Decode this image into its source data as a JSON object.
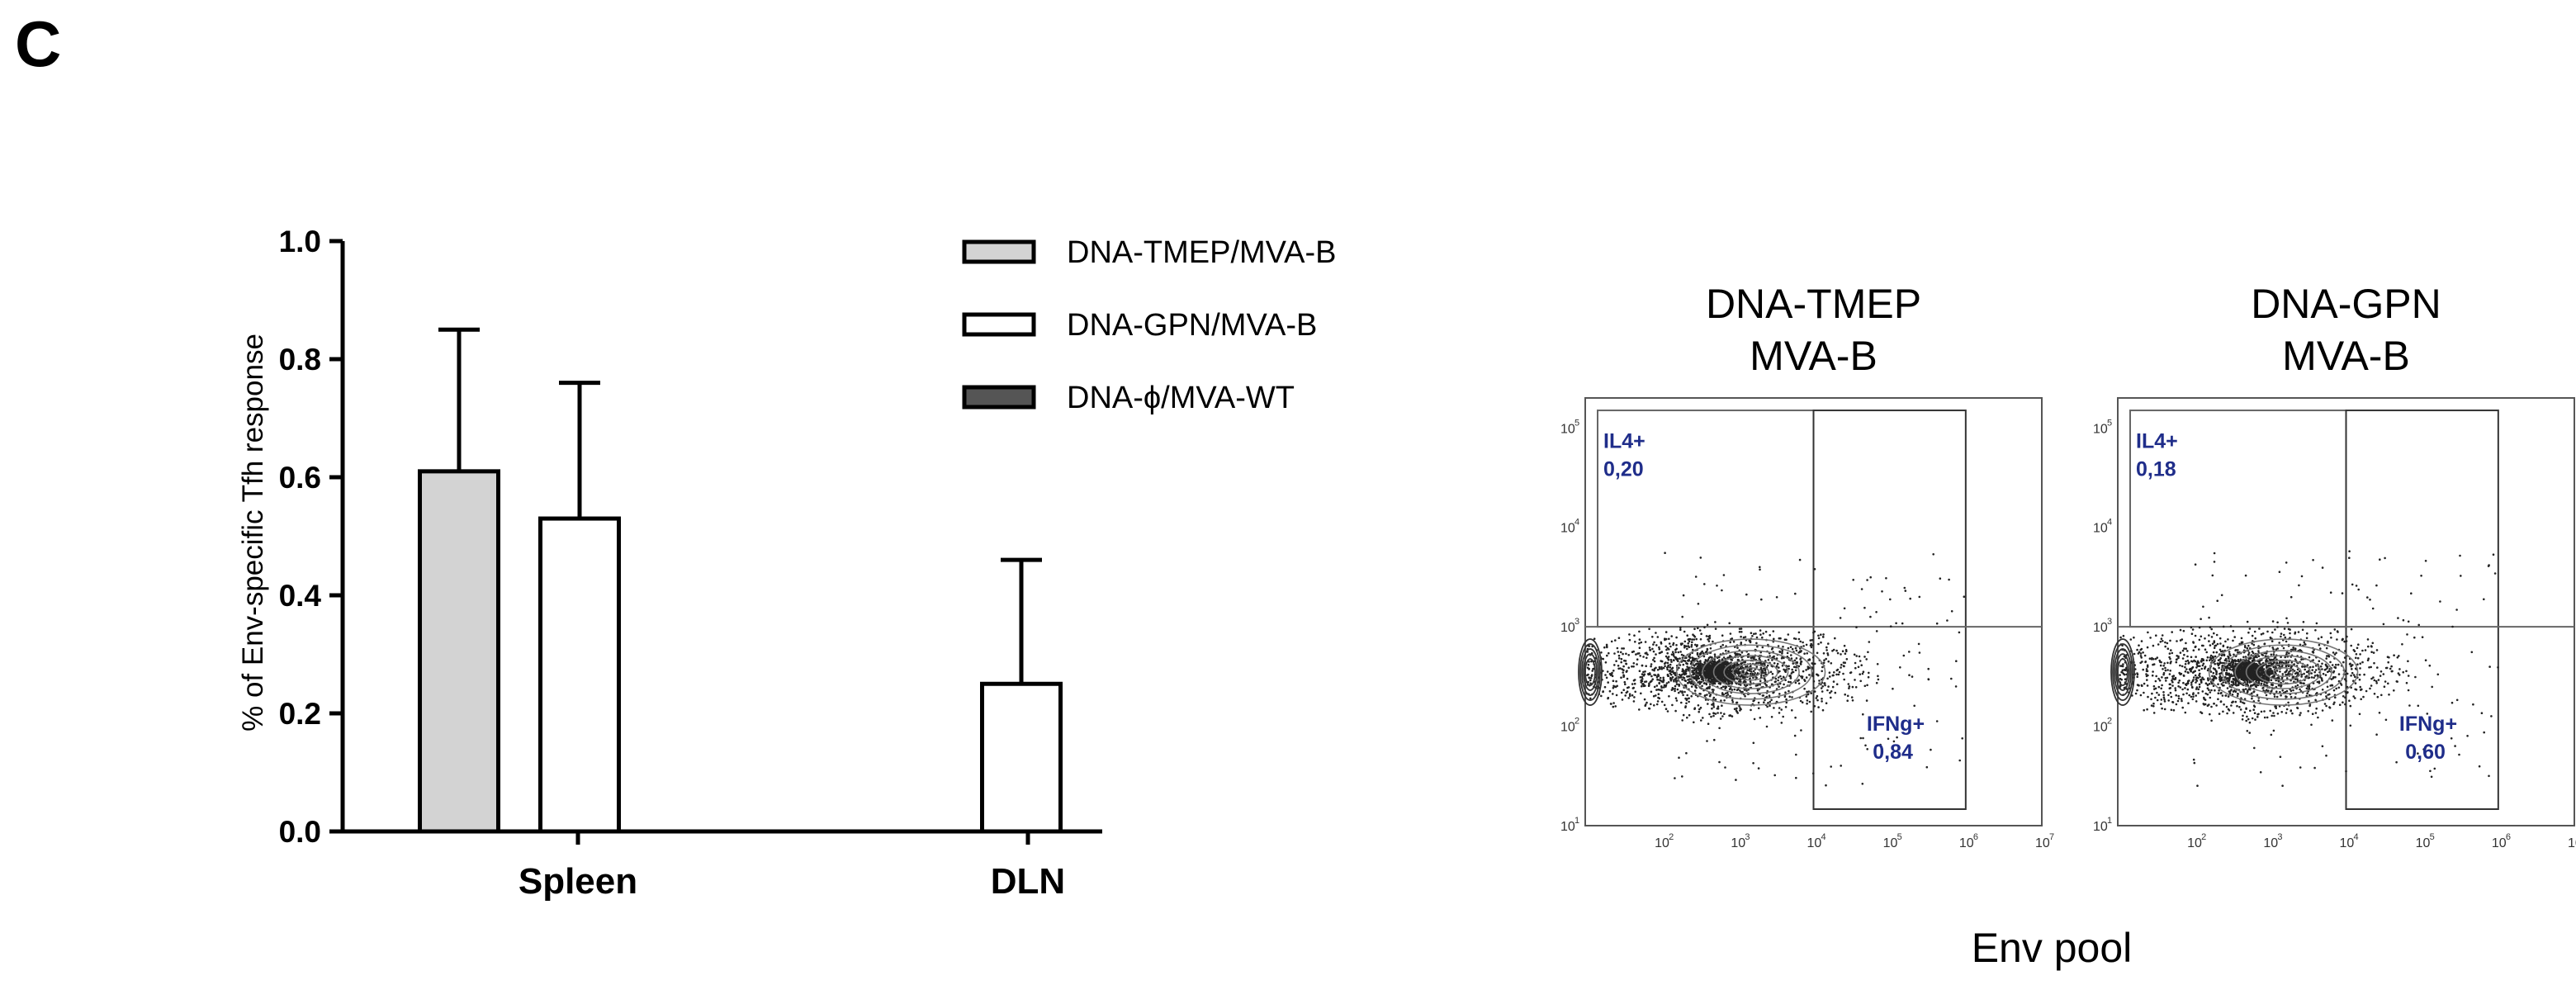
{
  "panel_label": "C",
  "chart_data": [
    {
      "type": "bar",
      "ylabel": "% of Env-specific Tfh response",
      "xlabel": "",
      "ylim": [
        0,
        1.0
      ],
      "yticks": [
        "0.0",
        "0.2",
        "0.4",
        "0.6",
        "0.8",
        "1.0"
      ],
      "ytick_values": [
        0,
        0.2,
        0.4,
        0.6,
        0.8,
        1.0
      ],
      "categories": [
        "Spleen",
        "DLN"
      ],
      "legend_position": "top-right",
      "series": [
        {
          "name": "DNA-TMEP/MVA-B",
          "color": "#d3d3d3",
          "values": [
            0.61,
            0.0
          ],
          "errors": [
            0.24,
            0.0
          ]
        },
        {
          "name": "DNA-GPN/MVA-B",
          "color": "#ffffff",
          "values": [
            0.53,
            0.25
          ],
          "errors": [
            0.23,
            0.21
          ]
        },
        {
          "name": "DNA-ϕ/MVA-WT",
          "color": "#555555",
          "values": [
            0.0,
            0.0
          ],
          "errors": [
            0.0,
            0.0
          ]
        }
      ]
    },
    {
      "type": "scatter",
      "title_line1": "DNA-TMEP",
      "title_line2": "MVA-B",
      "xscale": "log",
      "yscale": "log",
      "xlim": [
        10,
        10000000
      ],
      "ylim": [
        10,
        200000
      ],
      "gate_quadrant_x": 10000,
      "gate_quadrant_y": 1000,
      "gates": [
        {
          "name": "IL4+",
          "value": "0,20"
        },
        {
          "name": "IFNg+",
          "value": "0,84"
        }
      ]
    },
    {
      "type": "scatter",
      "title_line1": "DNA-GPN",
      "title_line2": "MVA-B",
      "xscale": "log",
      "yscale": "log",
      "xlim": [
        10,
        10000000
      ],
      "ylim": [
        10,
        200000
      ],
      "gate_quadrant_x": 10000,
      "gate_quadrant_y": 1000,
      "gates": [
        {
          "name": "IL4+",
          "value": "0,18"
        },
        {
          "name": "IFNg+",
          "value": "0,60"
        }
      ]
    }
  ],
  "flow_xlabel": "Env pool",
  "flow_xticks": [
    "10",
    "10",
    "10",
    "10",
    "10",
    "10",
    "10"
  ],
  "flow_xtick_exps": [
    "",
    "2",
    "3",
    "4",
    "5",
    "6",
    "7"
  ],
  "flow_yticks": [
    "10",
    "10",
    "10",
    "10",
    "10"
  ],
  "flow_ytick_exps": [
    "1",
    "2",
    "3",
    "4",
    "5"
  ]
}
